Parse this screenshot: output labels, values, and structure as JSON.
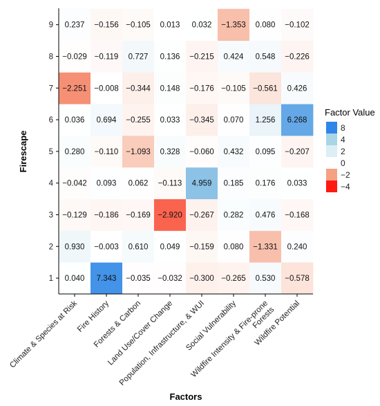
{
  "chart_data": {
    "type": "heatmap",
    "title": "",
    "xlabel": "Factors",
    "ylabel": "Firescape",
    "x_categories": [
      "Climate & Species at Risk",
      "Fire History",
      "Forests & Carbon",
      "Land Use/Cover Change",
      "Population, Infrastructure, & WUI",
      "Social Vulnerability",
      "Wildfire Intensity & Fire-prone Forests",
      "Wildfire Potential"
    ],
    "y_categories": [
      "1",
      "2",
      "3",
      "4",
      "5",
      "6",
      "7",
      "8",
      "9"
    ],
    "values": [
      [
        0.04,
        7.343,
        -0.035,
        -0.032,
        -0.3,
        -0.265,
        0.53,
        -0.578
      ],
      [
        0.93,
        -0.003,
        0.61,
        0.049,
        -0.159,
        0.08,
        -1.331,
        0.24
      ],
      [
        -0.129,
        -0.186,
        -0.169,
        -2.92,
        -0.267,
        0.282,
        0.476,
        -0.168
      ],
      [
        -0.042,
        0.093,
        0.062,
        -0.113,
        4.959,
        0.185,
        0.176,
        0.033
      ],
      [
        0.28,
        -0.11,
        -1.093,
        0.328,
        -0.06,
        0.432,
        0.095,
        -0.207
      ],
      [
        0.036,
        0.694,
        -0.255,
        0.033,
        -0.345,
        0.07,
        1.256,
        6.268
      ],
      [
        -2.251,
        -0.008,
        -0.344,
        0.148,
        -0.176,
        -0.105,
        -0.561,
        0.426
      ],
      [
        -0.029,
        -0.119,
        0.727,
        0.136,
        -0.215,
        0.424,
        0.548,
        -0.226
      ],
      [
        0.237,
        -0.156,
        -0.105,
        0.013,
        0.032,
        -1.353,
        0.08,
        -0.102
      ]
    ],
    "cell_labels": [
      [
        "0.040",
        "7.343",
        "−0.035",
        "−0.032",
        "−0.300",
        "−0.265",
        "0.530",
        "−0.578"
      ],
      [
        "0.930",
        "−0.003",
        "0.610",
        "0.049",
        "−0.159",
        "0.080",
        "−1.331",
        "0.240"
      ],
      [
        "−0.129",
        "−0.186",
        "−0.169",
        "−2.920",
        "−0.267",
        "0.282",
        "0.476",
        "−0.168"
      ],
      [
        "−0.042",
        "0.093",
        "0.062",
        "−0.113",
        "4.959",
        "0.185",
        "0.176",
        "0.033"
      ],
      [
        "0.280",
        "−0.110",
        "−1.093",
        "0.328",
        "−0.060",
        "0.432",
        "0.095",
        "−0.207"
      ],
      [
        "0.036",
        "0.694",
        "−0.255",
        "0.033",
        "−0.345",
        "0.070",
        "1.256",
        "6.268"
      ],
      [
        "−2.251",
        "−0.008",
        "−0.344",
        "0.148",
        "−0.176",
        "−0.105",
        "−0.561",
        "0.426"
      ],
      [
        "−0.029",
        "−0.119",
        "0.727",
        "0.136",
        "−0.215",
        "0.424",
        "0.548",
        "−0.226"
      ],
      [
        "0.237",
        "−0.156",
        "−0.105",
        "0.013",
        "0.032",
        "−1.353",
        "0.080",
        "−0.102"
      ]
    ],
    "legend": {
      "title": "Factor Value",
      "placement": "right",
      "entries": [
        {
          "label": "8",
          "color": "#2f86e8"
        },
        {
          "label": "4",
          "color": "#a9d5e6"
        },
        {
          "label": "2",
          "color": "#ddeef5"
        },
        {
          "label": "0",
          "color": "#ffffff"
        },
        {
          "label": "−2",
          "color": "#f5a183"
        },
        {
          "label": "−4",
          "color": "#ff1a10"
        }
      ]
    },
    "colors": {
      "positive_max": "#2f86e8",
      "positive_mid": "#a9d5e6",
      "positive_low": "#ddeef5",
      "zero": "#ffffff",
      "negative_mid": "#f5a183",
      "negative_max": "#ff1a10"
    }
  }
}
